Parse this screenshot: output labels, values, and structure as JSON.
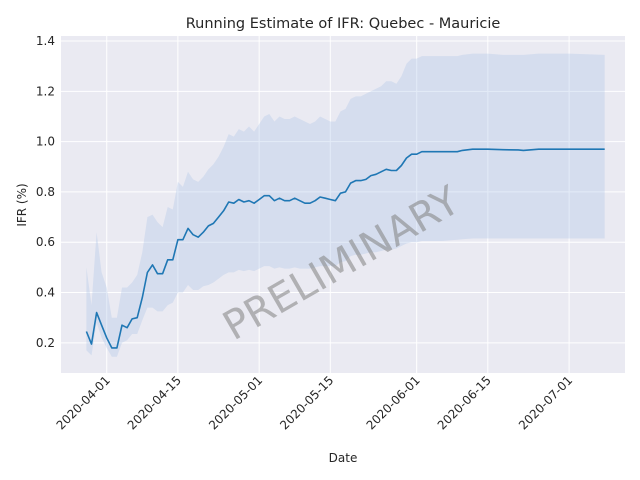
{
  "chart_data": {
    "type": "line",
    "title": "Running Estimate of IFR: Quebec - Mauricie",
    "xlabel": "Date",
    "ylabel": "IFR (%)",
    "watermark": "PRELIMINARY",
    "x_range": [
      "2020-03-23",
      "2020-07-12"
    ],
    "ylim": [
      0.08,
      1.42
    ],
    "grid": true,
    "colors": {
      "line": "#1f77b4",
      "band": "#aec7e8",
      "plot_background": "#eaeaf2",
      "grid": "#ffffff"
    },
    "x_ticks": [
      "2020-04-01",
      "2020-04-15",
      "2020-05-01",
      "2020-05-15",
      "2020-06-01",
      "2020-06-15",
      "2020-07-01"
    ],
    "y_ticks": [
      0.2,
      0.4,
      0.6,
      0.8,
      1.0,
      1.2,
      1.4
    ],
    "y_tick_labels": [
      "0.2",
      "0.4",
      "0.6",
      "0.8",
      "1.0",
      "1.2",
      "1.4"
    ],
    "series": [
      {
        "x": [
          "2020-03-28",
          "2020-03-29",
          "2020-03-30",
          "2020-03-31",
          "2020-04-01",
          "2020-04-02",
          "2020-04-03",
          "2020-04-04",
          "2020-04-05",
          "2020-04-06",
          "2020-04-07",
          "2020-04-08",
          "2020-04-09",
          "2020-04-10",
          "2020-04-11",
          "2020-04-12",
          "2020-04-13",
          "2020-04-14",
          "2020-04-15",
          "2020-04-16",
          "2020-04-17",
          "2020-04-18",
          "2020-04-19",
          "2020-04-20",
          "2020-04-21",
          "2020-04-22",
          "2020-04-23",
          "2020-04-24",
          "2020-04-25",
          "2020-04-26",
          "2020-04-27",
          "2020-04-28",
          "2020-04-29",
          "2020-04-30",
          "2020-05-01",
          "2020-05-02",
          "2020-05-03",
          "2020-05-04",
          "2020-05-05",
          "2020-05-06",
          "2020-05-07",
          "2020-05-08",
          "2020-05-09",
          "2020-05-10",
          "2020-05-11",
          "2020-05-12",
          "2020-05-13",
          "2020-05-14",
          "2020-05-15",
          "2020-05-16",
          "2020-05-17",
          "2020-05-18",
          "2020-05-19",
          "2020-05-20",
          "2020-05-21",
          "2020-05-22",
          "2020-05-23",
          "2020-05-24",
          "2020-05-25",
          "2020-05-26",
          "2020-05-27",
          "2020-05-28",
          "2020-05-29",
          "2020-05-30",
          "2020-05-31",
          "2020-06-01",
          "2020-06-02",
          "2020-06-03",
          "2020-06-06",
          "2020-06-09",
          "2020-06-10",
          "2020-06-12",
          "2020-06-15",
          "2020-06-18",
          "2020-06-21",
          "2020-06-22",
          "2020-06-25",
          "2020-07-01",
          "2020-07-08"
        ],
        "values": [
          0.245,
          0.195,
          0.32,
          0.27,
          0.22,
          0.18,
          0.18,
          0.27,
          0.26,
          0.295,
          0.3,
          0.38,
          0.48,
          0.51,
          0.475,
          0.475,
          0.53,
          0.53,
          0.61,
          0.61,
          0.655,
          0.63,
          0.62,
          0.64,
          0.665,
          0.675,
          0.7,
          0.725,
          0.76,
          0.755,
          0.77,
          0.76,
          0.765,
          0.755,
          0.77,
          0.785,
          0.785,
          0.765,
          0.775,
          0.765,
          0.765,
          0.775,
          0.765,
          0.755,
          0.755,
          0.765,
          0.78,
          0.775,
          0.77,
          0.765,
          0.795,
          0.8,
          0.835,
          0.845,
          0.845,
          0.85,
          0.865,
          0.87,
          0.88,
          0.89,
          0.885,
          0.885,
          0.905,
          0.935,
          0.95,
          0.95,
          0.96,
          0.96,
          0.96,
          0.96,
          0.965,
          0.97,
          0.97,
          0.968,
          0.967,
          0.965,
          0.97,
          0.97,
          0.97
        ],
        "lower": [
          0.17,
          0.15,
          0.28,
          0.22,
          0.18,
          0.145,
          0.145,
          0.2,
          0.21,
          0.235,
          0.235,
          0.29,
          0.34,
          0.34,
          0.325,
          0.325,
          0.35,
          0.36,
          0.4,
          0.4,
          0.43,
          0.41,
          0.41,
          0.425,
          0.43,
          0.44,
          0.455,
          0.47,
          0.48,
          0.48,
          0.49,
          0.485,
          0.49,
          0.485,
          0.495,
          0.505,
          0.505,
          0.495,
          0.5,
          0.495,
          0.495,
          0.5,
          0.495,
          0.495,
          0.495,
          0.5,
          0.505,
          0.505,
          0.505,
          0.505,
          0.52,
          0.525,
          0.545,
          0.55,
          0.55,
          0.555,
          0.56,
          0.56,
          0.565,
          0.57,
          0.57,
          0.575,
          0.585,
          0.595,
          0.6,
          0.6,
          0.605,
          0.605,
          0.605,
          0.61,
          0.612,
          0.615,
          0.615,
          0.615,
          0.615,
          0.615,
          0.615,
          0.615,
          0.615
        ],
        "upper": [
          0.5,
          0.35,
          0.64,
          0.48,
          0.42,
          0.3,
          0.3,
          0.42,
          0.42,
          0.44,
          0.47,
          0.56,
          0.7,
          0.71,
          0.68,
          0.66,
          0.74,
          0.73,
          0.84,
          0.82,
          0.88,
          0.85,
          0.84,
          0.86,
          0.89,
          0.91,
          0.94,
          0.98,
          1.03,
          1.02,
          1.05,
          1.04,
          1.06,
          1.04,
          1.07,
          1.1,
          1.11,
          1.08,
          1.1,
          1.09,
          1.09,
          1.1,
          1.09,
          1.08,
          1.07,
          1.08,
          1.1,
          1.09,
          1.08,
          1.08,
          1.12,
          1.13,
          1.17,
          1.18,
          1.18,
          1.19,
          1.2,
          1.21,
          1.22,
          1.24,
          1.24,
          1.23,
          1.26,
          1.31,
          1.33,
          1.33,
          1.34,
          1.34,
          1.34,
          1.34,
          1.345,
          1.35,
          1.35,
          1.345,
          1.345,
          1.345,
          1.35,
          1.35,
          1.345
        ]
      }
    ]
  }
}
